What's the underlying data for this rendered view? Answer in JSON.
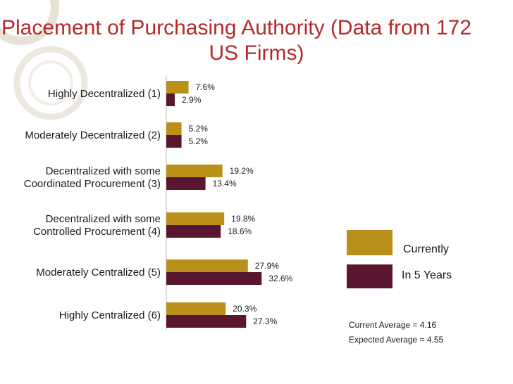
{
  "slide": {
    "title_line1": "Placement of Purchasing Authority (Data from 172",
    "title_line2": "US Firms)"
  },
  "colors": {
    "title": "#b5292b",
    "currently": "#b8901a",
    "in_5_years": "#5a1530",
    "deco": "#e7e2d6"
  },
  "legend": {
    "items": [
      {
        "label": "Currently",
        "color": "#b8901a"
      },
      {
        "label": "In 5 Years",
        "color": "#5a1530"
      }
    ]
  },
  "notes": {
    "current_average": "Current Average = 4.16",
    "expected_average": "Expected Average = 4.55"
  },
  "chart_data": {
    "type": "bar",
    "orientation": "horizontal",
    "title": "Placement of Purchasing Authority (Data from 172 US Firms)",
    "categories": [
      [
        "Highly Decentralized (1)"
      ],
      [
        "Moderately Decentralized (2)"
      ],
      [
        "Decentralized with some",
        "Coordinated Procurement (3)"
      ],
      [
        "Decentralized with some",
        "Controlled Procurement (4)"
      ],
      [
        "Moderately Centralized (5)"
      ],
      [
        "Highly Centralized (6)"
      ]
    ],
    "series": [
      {
        "name": "Currently",
        "values": [
          7.6,
          5.2,
          19.2,
          19.8,
          27.9,
          20.3
        ],
        "labels": [
          "7.6%",
          "5.2%",
          "19.2%",
          "19.8%",
          "27.9%",
          "20.3%"
        ]
      },
      {
        "name": "In 5 Years",
        "values": [
          2.9,
          5.2,
          13.4,
          18.6,
          32.6,
          27.3
        ],
        "labels": [
          "2.9%",
          "5.2%",
          "13.4%",
          "18.6%",
          "32.6%",
          "27.3%"
        ]
      }
    ],
    "xlim": [
      0,
      35
    ],
    "grid": false,
    "legend_position": "right"
  }
}
